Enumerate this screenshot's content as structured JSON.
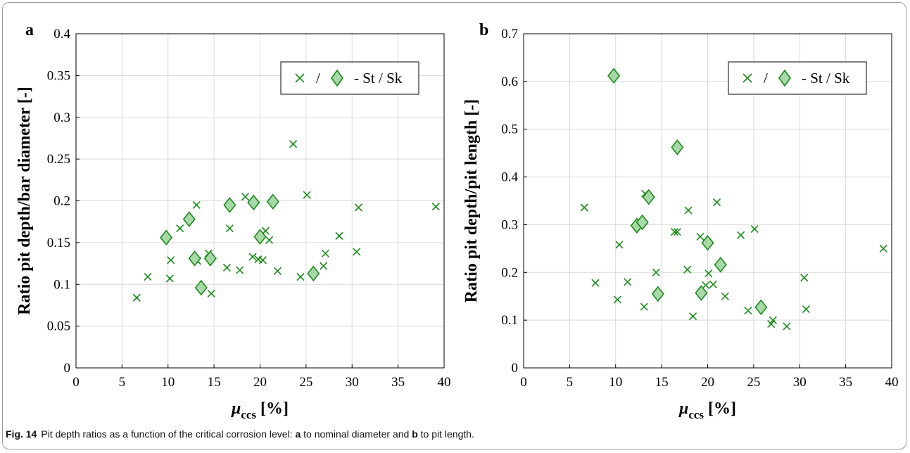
{
  "caption": {
    "label": "Fig. 14",
    "text_1": "Pit depth ratios as a function of the critical corrosion level: ",
    "a_letter": "a",
    "text_2": " to nominal diameter and ",
    "b_letter": "b",
    "text_3": " to pit length."
  },
  "colors": {
    "marker": "#1a8a1a",
    "diamond_fill": "#a8d8a8",
    "grid": "#d9d9d9",
    "axis": "#000000"
  },
  "chart_data": [
    {
      "panel_label": "a",
      "type": "scatter",
      "xlabel": "μccs [%]",
      "xlabel_main": "μ",
      "xlabel_sub": "ccs",
      "xlabel_tail": " [%]",
      "ylabel": "Ratio pit depth/bar diameter [-]",
      "xlim": [
        0,
        40
      ],
      "ylim": [
        0,
        0.4
      ],
      "xticks": [
        "0",
        "5",
        "10",
        "15",
        "20",
        "25",
        "30",
        "35",
        "40"
      ],
      "yticks": [
        "0",
        "0.05",
        "0.1",
        "0.15",
        "0.2",
        "0.25",
        "0.3",
        "0.35",
        "0.4"
      ],
      "xtick_values": [
        0,
        5,
        10,
        15,
        20,
        25,
        30,
        35,
        40
      ],
      "ytick_values": [
        0,
        0.05,
        0.1,
        0.15,
        0.2,
        0.25,
        0.3,
        0.35,
        0.4
      ],
      "grid": true,
      "legend": {
        "position": "top-right",
        "slash": "/",
        "text": "- St / Sk"
      },
      "series": [
        {
          "marker": "x",
          "points": [
            [
              6.6,
              0.084
            ],
            [
              7.8,
              0.109
            ],
            [
              10.2,
              0.107
            ],
            [
              10.3,
              0.129
            ],
            [
              11.3,
              0.167
            ],
            [
              13.1,
              0.195
            ],
            [
              13.2,
              0.128
            ],
            [
              14.4,
              0.137
            ],
            [
              14.7,
              0.089
            ],
            [
              16.4,
              0.12
            ],
            [
              16.7,
              0.167
            ],
            [
              17.8,
              0.117
            ],
            [
              18.4,
              0.205
            ],
            [
              19.2,
              0.133
            ],
            [
              19.8,
              0.13
            ],
            [
              20.3,
              0.129
            ],
            [
              20.6,
              0.164
            ],
            [
              21.0,
              0.153
            ],
            [
              21.9,
              0.116
            ],
            [
              23.6,
              0.268
            ],
            [
              24.4,
              0.109
            ],
            [
              25.1,
              0.207
            ],
            [
              26.9,
              0.122
            ],
            [
              27.1,
              0.137
            ],
            [
              28.6,
              0.158
            ],
            [
              30.5,
              0.139
            ],
            [
              30.7,
              0.192
            ],
            [
              39.1,
              0.193
            ]
          ]
        },
        {
          "marker": "diamond",
          "points": [
            [
              9.8,
              0.156
            ],
            [
              12.3,
              0.178
            ],
            [
              12.9,
              0.131
            ],
            [
              13.6,
              0.096
            ],
            [
              14.6,
              0.131
            ],
            [
              16.7,
              0.195
            ],
            [
              19.3,
              0.198
            ],
            [
              20.0,
              0.157
            ],
            [
              21.4,
              0.199
            ],
            [
              25.8,
              0.113
            ]
          ]
        }
      ]
    },
    {
      "panel_label": "b",
      "type": "scatter",
      "xlabel": "μccs [%]",
      "xlabel_main": "μ",
      "xlabel_sub": "ccs",
      "xlabel_tail": " [%]",
      "ylabel": "Ratio pit depth/pit length [-]",
      "xlim": [
        0,
        40
      ],
      "ylim": [
        0,
        0.7
      ],
      "xticks": [
        "0",
        "5",
        "10",
        "15",
        "20",
        "25",
        "30",
        "35",
        "40"
      ],
      "yticks": [
        "0",
        "0.1",
        "0.2",
        "0.3",
        "0.4",
        "0.5",
        "0.6",
        "0.7"
      ],
      "xtick_values": [
        0,
        5,
        10,
        15,
        20,
        25,
        30,
        35,
        40
      ],
      "ytick_values": [
        0,
        0.1,
        0.2,
        0.3,
        0.4,
        0.5,
        0.6,
        0.7
      ],
      "grid": true,
      "legend": {
        "position": "top-right",
        "slash": "/",
        "text": "- St / Sk"
      },
      "series": [
        {
          "marker": "x",
          "points": [
            [
              6.6,
              0.336
            ],
            [
              7.8,
              0.178
            ],
            [
              10.2,
              0.143
            ],
            [
              10.4,
              0.258
            ],
            [
              11.3,
              0.18
            ],
            [
              13.1,
              0.128
            ],
            [
              13.2,
              0.365
            ],
            [
              14.4,
              0.2
            ],
            [
              16.4,
              0.285
            ],
            [
              16.7,
              0.285
            ],
            [
              17.8,
              0.206
            ],
            [
              17.9,
              0.33
            ],
            [
              18.4,
              0.108
            ],
            [
              19.2,
              0.275
            ],
            [
              19.8,
              0.173
            ],
            [
              20.1,
              0.198
            ],
            [
              20.6,
              0.175
            ],
            [
              21.0,
              0.347
            ],
            [
              21.9,
              0.15
            ],
            [
              23.6,
              0.278
            ],
            [
              24.4,
              0.12
            ],
            [
              25.1,
              0.291
            ],
            [
              26.9,
              0.092
            ],
            [
              27.1,
              0.1
            ],
            [
              28.6,
              0.087
            ],
            [
              30.5,
              0.189
            ],
            [
              30.7,
              0.123
            ],
            [
              39.1,
              0.25
            ]
          ]
        },
        {
          "marker": "diamond",
          "points": [
            [
              9.8,
              0.612
            ],
            [
              12.3,
              0.298
            ],
            [
              12.9,
              0.305
            ],
            [
              13.6,
              0.358
            ],
            [
              14.6,
              0.155
            ],
            [
              16.7,
              0.462
            ],
            [
              19.3,
              0.157
            ],
            [
              20.0,
              0.262
            ],
            [
              21.4,
              0.216
            ],
            [
              25.8,
              0.127
            ]
          ]
        }
      ]
    }
  ]
}
